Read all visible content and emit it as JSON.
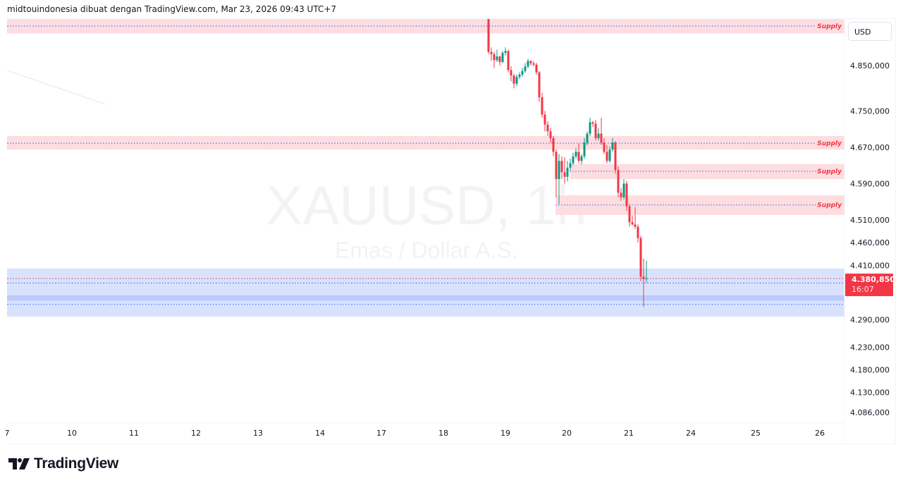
{
  "header": {
    "attribution": "midtouindonesia dibuat dengan TradingView.com, Mar 23, 2026 09:43 UTC+7"
  },
  "price_axis": {
    "currency": "USD"
  },
  "logo": {
    "text": "TradingView"
  },
  "colors": {
    "up": "#089981",
    "down": "#f23645",
    "supply_zone": "#fddde0",
    "demand_zone": "#d9e2fd",
    "demand_core": "#bccbfa",
    "line": "#2962ff",
    "price_tag": "#f23645"
  },
  "chart_data": {
    "type": "candlestick",
    "symbol": "XAUUSD, 1h",
    "description": "Emas / Dollar A.S.",
    "y_ticks": [
      {
        "v": 4850,
        "label": "4.850,000"
      },
      {
        "v": 4750,
        "label": "4.750,000"
      },
      {
        "v": 4670,
        "label": "4.670,000"
      },
      {
        "v": 4590,
        "label": "4.590,000"
      },
      {
        "v": 4510,
        "label": "4.510,000"
      },
      {
        "v": 4460,
        "label": "4.460,000"
      },
      {
        "v": 4410,
        "label": "4.410,000"
      },
      {
        "v": 4290,
        "label": "4.290,000"
      },
      {
        "v": 4230,
        "label": "4.230,000"
      },
      {
        "v": 4180,
        "label": "4.180,000"
      },
      {
        "v": 4130,
        "label": "4.130,000"
      },
      {
        "v": 4086,
        "label": "4.086,000"
      }
    ],
    "x_ticks": [
      "7",
      "10",
      "11",
      "12",
      "13",
      "14",
      "17",
      "18",
      "19",
      "20",
      "21",
      "24",
      "25",
      "26"
    ],
    "last_price": {
      "value": 4380.85,
      "label": "4.380,850",
      "countdown": "16:07"
    },
    "zones": [
      {
        "type": "supply",
        "label": "Supply",
        "top": 4952,
        "bottom": 4921,
        "line": 4937,
        "start": 0
      },
      {
        "type": "supply",
        "label": "Supply",
        "top": 4695,
        "bottom": 4665,
        "line": 4679,
        "start": 0
      },
      {
        "type": "supply",
        "label": "Supply",
        "top": 4633,
        "bottom": 4600,
        "line": 4617,
        "start": 0.672
      },
      {
        "type": "supply",
        "label": "Supply",
        "top": 4564,
        "bottom": 4521,
        "line": 4543,
        "start": 0.655
      }
    ],
    "demand": {
      "top": 4403,
      "bottom": 4297,
      "core_top": 4344,
      "core_bottom": 4332,
      "lines": [
        4371,
        4324
      ]
    },
    "candles": [
      [
        4960,
        4965,
        4875,
        4880
      ],
      [
        4880,
        4890,
        4860,
        4875
      ],
      [
        4875,
        4880,
        4845,
        4862
      ],
      [
        4862,
        4885,
        4858,
        4870
      ],
      [
        4870,
        4872,
        4850,
        4858
      ],
      [
        4858,
        4882,
        4855,
        4878
      ],
      [
        4878,
        4890,
        4872,
        4882
      ],
      [
        4882,
        4885,
        4835,
        4840
      ],
      [
        4840,
        4848,
        4815,
        4828
      ],
      [
        4828,
        4832,
        4800,
        4810
      ],
      [
        4810,
        4830,
        4805,
        4825
      ],
      [
        4825,
        4835,
        4820,
        4830
      ],
      [
        4830,
        4845,
        4825,
        4838
      ],
      [
        4838,
        4855,
        4834,
        4848
      ],
      [
        4848,
        4865,
        4844,
        4860
      ],
      [
        4860,
        4862,
        4850,
        4855
      ],
      [
        4855,
        4860,
        4848,
        4852
      ],
      [
        4852,
        4856,
        4830,
        4835
      ],
      [
        4835,
        4838,
        4770,
        4780
      ],
      [
        4780,
        4790,
        4735,
        4742
      ],
      [
        4742,
        4750,
        4705,
        4720
      ],
      [
        4720,
        4728,
        4695,
        4705
      ],
      [
        4705,
        4712,
        4680,
        4690
      ],
      [
        4690,
        4695,
        4650,
        4660
      ],
      [
        4660,
        4665,
        4560,
        4600
      ],
      [
        4600,
        4655,
        4545,
        4640
      ],
      [
        4640,
        4650,
        4600,
        4615
      ],
      [
        4615,
        4648,
        4590,
        4605
      ],
      [
        4605,
        4640,
        4595,
        4625
      ],
      [
        4625,
        4645,
        4618,
        4635
      ],
      [
        4635,
        4658,
        4630,
        4650
      ],
      [
        4650,
        4668,
        4645,
        4660
      ],
      [
        4660,
        4678,
        4635,
        4640
      ],
      [
        4640,
        4655,
        4632,
        4650
      ],
      [
        4650,
        4690,
        4645,
        4680
      ],
      [
        4680,
        4705,
        4675,
        4700
      ],
      [
        4700,
        4735,
        4695,
        4725
      ],
      [
        4725,
        4728,
        4715,
        4722
      ],
      [
        4722,
        4730,
        4685,
        4690
      ],
      [
        4690,
        4712,
        4685,
        4700
      ],
      [
        4700,
        4735,
        4675,
        4680
      ],
      [
        4680,
        4690,
        4655,
        4660
      ],
      [
        4660,
        4675,
        4635,
        4640
      ],
      [
        4640,
        4672,
        4636,
        4665
      ],
      [
        4665,
        4690,
        4660,
        4680
      ],
      [
        4680,
        4684,
        4612,
        4620
      ],
      [
        4620,
        4628,
        4560,
        4570
      ],
      [
        4570,
        4580,
        4552,
        4560
      ],
      [
        4560,
        4600,
        4555,
        4590
      ],
      [
        4590,
        4596,
        4530,
        4540
      ],
      [
        4540,
        4545,
        4495,
        4505
      ],
      [
        4505,
        4520,
        4498,
        4500
      ],
      [
        4500,
        4538,
        4490,
        4495
      ],
      [
        4495,
        4500,
        4460,
        4470
      ],
      [
        4470,
        4475,
        4375,
        4385
      ],
      [
        4385,
        4425,
        4318,
        4380
      ],
      [
        4380,
        4420,
        4372,
        4381
      ]
    ]
  }
}
